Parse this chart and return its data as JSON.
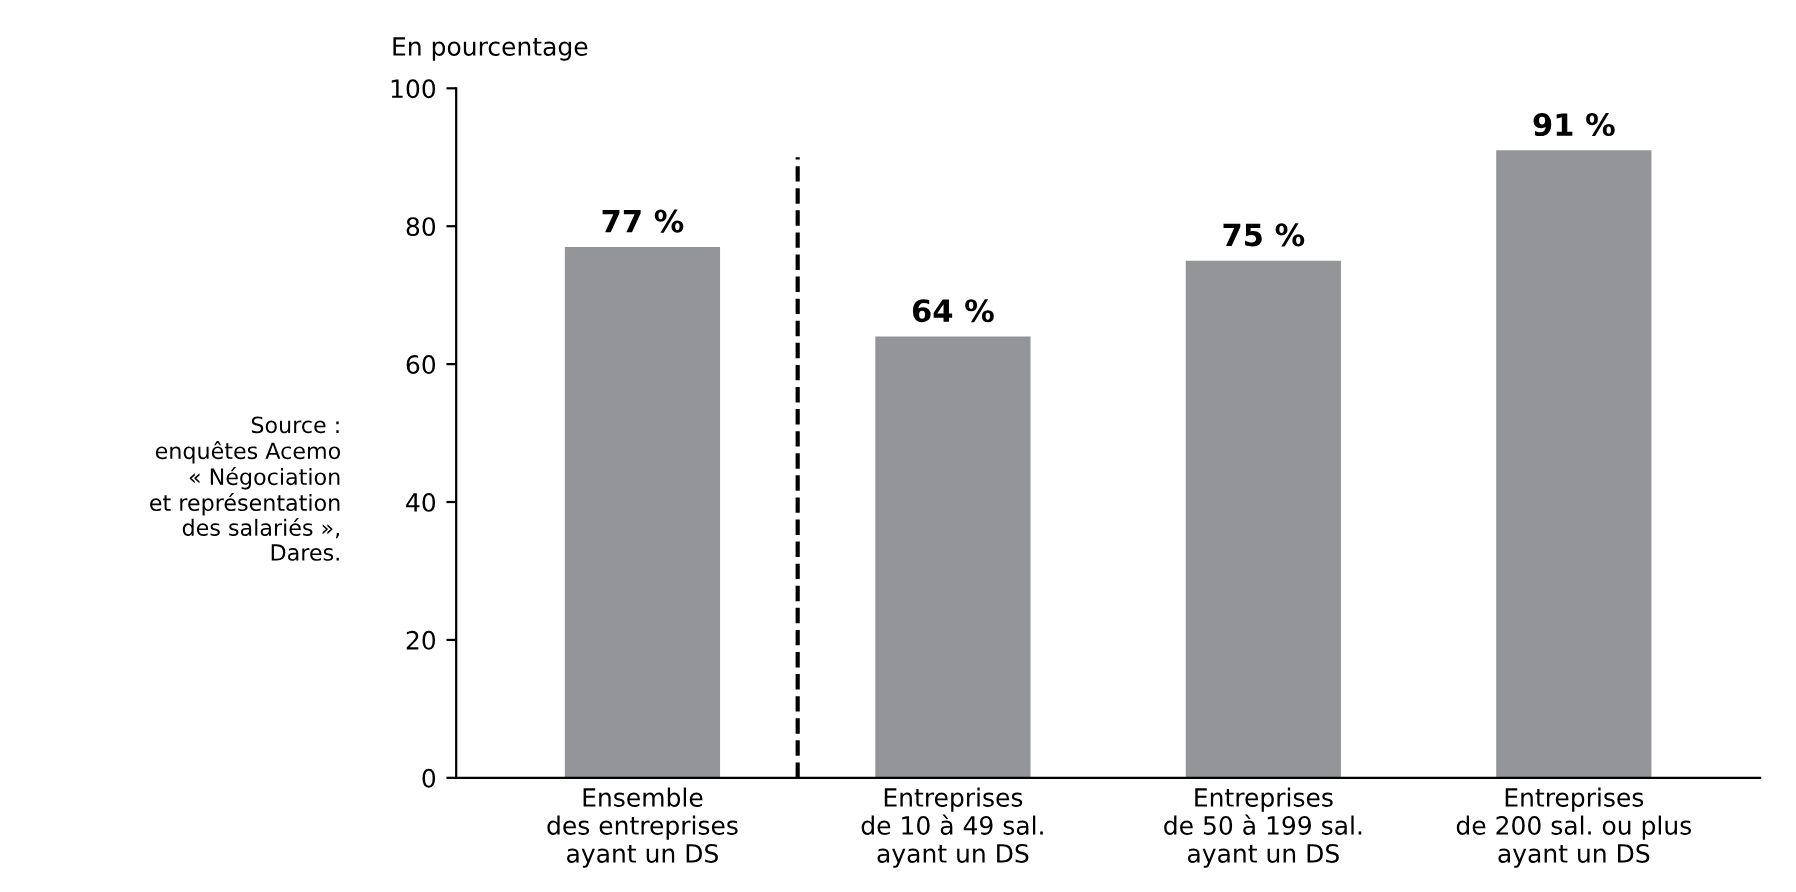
{
  "chart_data": {
    "type": "bar",
    "ylabel": "En pourcentage",
    "categories": [
      "Ensemble\ndes entreprises\nayant un DS",
      "Entreprises\nde 10 à 49 sal.\nayant un DS",
      "Entreprises\nde 50 à 199 sal.\nayant un DS",
      "Entreprises\nde 200 sal. ou plus\nayant un DS"
    ],
    "values": [
      77,
      64,
      75,
      91
    ],
    "color": "#939598",
    "value_labels": [
      "77 %",
      "64 %",
      "75 %",
      "91 %"
    ],
    "ylim": [
      0,
      100
    ],
    "yticks": [
      0,
      20,
      40,
      60,
      80,
      100
    ],
    "grid": false,
    "annotations": [
      "Source :\nenquêtes Acemo\n« Négociation\net représentation\ndes salariés »,\nDares."
    ]
  }
}
